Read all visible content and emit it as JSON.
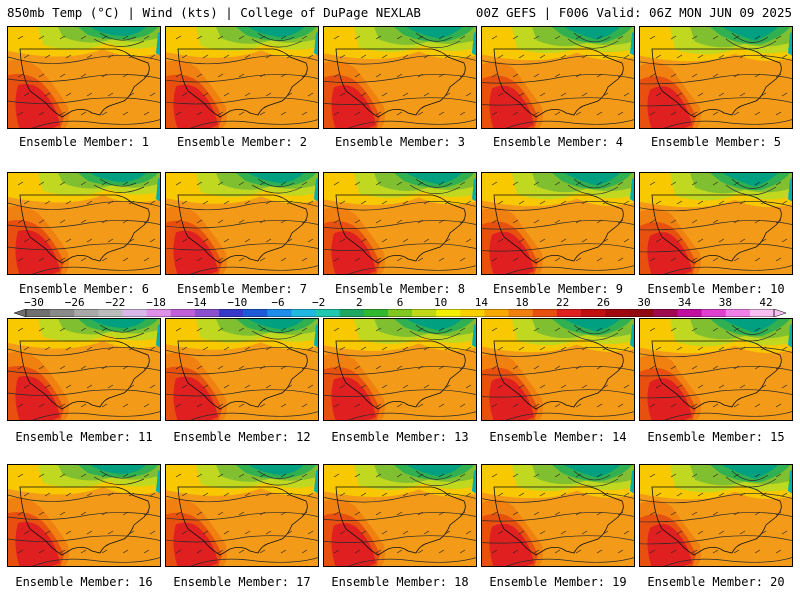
{
  "header": {
    "left": "850mb Temp (°C) | Wind (kts) | College of DuPage NEXLAB",
    "right": "00Z GEFS | F006 Valid: 06Z MON JUN 09 2025"
  },
  "members": [
    "Ensemble Member: 1",
    "Ensemble Member: 2",
    "Ensemble Member: 3",
    "Ensemble Member: 4",
    "Ensemble Member: 5",
    "Ensemble Member: 6",
    "Ensemble Member: 7",
    "Ensemble Member: 8",
    "Ensemble Member: 9",
    "Ensemble Member: 10",
    "Ensemble Member: 11",
    "Ensemble Member: 12",
    "Ensemble Member: 13",
    "Ensemble Member: 14",
    "Ensemble Member: 15",
    "Ensemble Member: 16",
    "Ensemble Member: 17",
    "Ensemble Member: 18",
    "Ensemble Member: 19",
    "Ensemble Member: 20"
  ],
  "colorbar": {
    "labels": [
      "−30",
      "−26",
      "−22",
      "−18",
      "−14",
      "−10",
      "−6",
      "−2",
      "2",
      "6",
      "10",
      "14",
      "18",
      "22",
      "26",
      "30",
      "34",
      "38",
      "42"
    ],
    "colors": [
      "#6f6f6f",
      "#8a8a8a",
      "#a8a8a8",
      "#bcbcbc",
      "#d8b8e8",
      "#e090e8",
      "#c060d8",
      "#8a50d0",
      "#3838c8",
      "#1e5ad8",
      "#1e8ce8",
      "#20b8e0",
      "#20c8b0",
      "#20a860",
      "#30b830",
      "#80c820",
      "#c0d818",
      "#f0f000",
      "#f8d000",
      "#f8a800",
      "#f08010",
      "#e85010",
      "#e02020",
      "#c01010",
      "#a00810",
      "#900810",
      "#a00850",
      "#c010a0",
      "#e040d0",
      "#f080e8",
      "#f8c0f0"
    ]
  },
  "field": {
    "bands": [
      "#00a080",
      "#30b050",
      "#80c030",
      "#c0d820",
      "#f0f000",
      "#f8c800",
      "#f8a800",
      "#f08010",
      "#e85010",
      "#e02020"
    ]
  }
}
